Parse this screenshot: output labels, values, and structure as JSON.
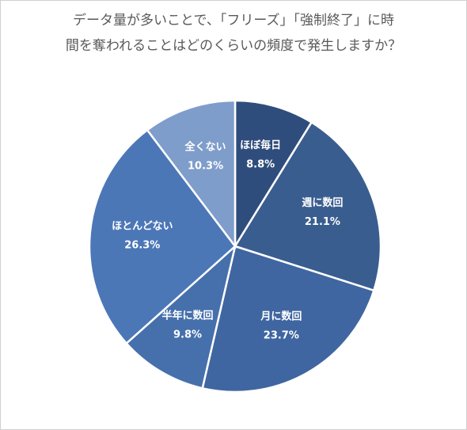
{
  "chart_data": {
    "type": "pie",
    "title": [
      "データ量が多いことで、「フリーズ」「強制終了」に時",
      "間を奪われることはどのくらいの頻度で発生しますか？"
    ],
    "categories": [
      "ほぼ毎日",
      "週に数回",
      "月に数回",
      "半年に数回",
      "ほとんどない",
      "全くない"
    ],
    "values": [
      8.8,
      21.1,
      23.7,
      9.8,
      26.3,
      10.3
    ],
    "value_labels": [
      "8.8%",
      "21.1%",
      "23.7%",
      "9.8%",
      "26.3%",
      "10.3%"
    ],
    "colors": [
      "#2f4d7c",
      "#3a5d8f",
      "#3f66a0",
      "#4670ac",
      "#4c77b7",
      "#7f9dcb"
    ]
  }
}
